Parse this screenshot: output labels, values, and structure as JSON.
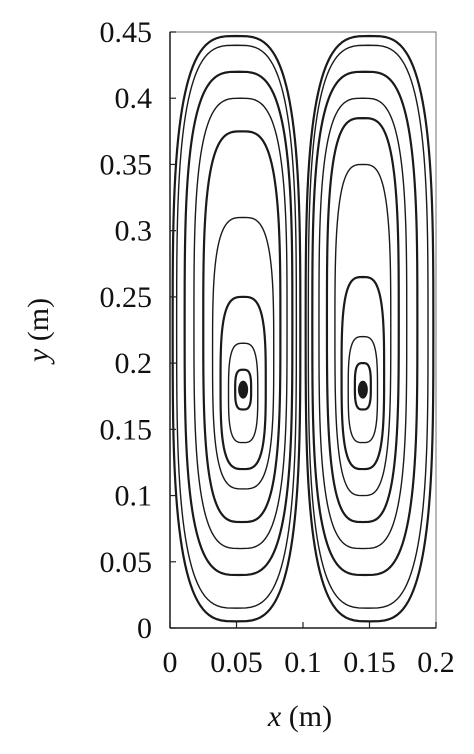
{
  "chart_data": {
    "type": "streamline",
    "title": "",
    "xlabel": {
      "var": "x",
      "unit": " (m)"
    },
    "ylabel": {
      "var": "y",
      "unit": " (m)"
    },
    "xlim": [
      0,
      0.2
    ],
    "ylim": [
      0,
      0.45
    ],
    "grid": false,
    "x_ticks": [
      {
        "value": 0,
        "label": "0"
      },
      {
        "value": 0.05,
        "label": "0.05"
      },
      {
        "value": 0.1,
        "label": "0.1"
      },
      {
        "value": 0.15,
        "label": "0.15"
      },
      {
        "value": 0.2,
        "label": "0.2"
      }
    ],
    "y_ticks": [
      {
        "value": 0,
        "label": "0"
      },
      {
        "value": 0.05,
        "label": "0.05"
      },
      {
        "value": 0.1,
        "label": "0.1"
      },
      {
        "value": 0.15,
        "label": "0.15"
      },
      {
        "value": 0.2,
        "label": "0.2"
      },
      {
        "value": 0.25,
        "label": "0.25"
      },
      {
        "value": 0.3,
        "label": "0.3"
      },
      {
        "value": 0.35,
        "label": "0.35"
      },
      {
        "value": 0.4,
        "label": "0.4"
      },
      {
        "value": 0.45,
        "label": "0.45"
      }
    ],
    "vortices": [
      {
        "center": [
          0.055,
          0.18
        ],
        "loops": [
          {
            "xmin": 0.049,
            "xmax": 0.061,
            "ymin": 0.165,
            "ymax": 0.195
          },
          {
            "xmin": 0.044,
            "xmax": 0.066,
            "ymin": 0.14,
            "ymax": 0.215
          },
          {
            "xmin": 0.038,
            "xmax": 0.072,
            "ymin": 0.12,
            "ymax": 0.25
          },
          {
            "xmin": 0.032,
            "xmax": 0.078,
            "ymin": 0.105,
            "ymax": 0.31
          },
          {
            "xmin": 0.025,
            "xmax": 0.083,
            "ymin": 0.08,
            "ymax": 0.375
          },
          {
            "xmin": 0.018,
            "xmax": 0.088,
            "ymin": 0.06,
            "ymax": 0.4
          },
          {
            "xmin": 0.011,
            "xmax": 0.092,
            "ymin": 0.04,
            "ymax": 0.42
          },
          {
            "xmin": 0.005,
            "xmax": 0.095,
            "ymin": 0.015,
            "ymax": 0.44
          },
          {
            "xmin": 0.002,
            "xmax": 0.098,
            "ymin": 0.005,
            "ymax": 0.447
          }
        ]
      },
      {
        "center": [
          0.145,
          0.18
        ],
        "loops": [
          {
            "xmin": 0.139,
            "xmax": 0.151,
            "ymin": 0.165,
            "ymax": 0.2
          },
          {
            "xmin": 0.134,
            "xmax": 0.156,
            "ymin": 0.14,
            "ymax": 0.22
          },
          {
            "xmin": 0.129,
            "xmax": 0.161,
            "ymin": 0.12,
            "ymax": 0.265
          },
          {
            "xmin": 0.124,
            "xmax": 0.166,
            "ymin": 0.1,
            "ymax": 0.35
          },
          {
            "xmin": 0.118,
            "xmax": 0.172,
            "ymin": 0.08,
            "ymax": 0.385
          },
          {
            "xmin": 0.112,
            "xmax": 0.178,
            "ymin": 0.06,
            "ymax": 0.4
          },
          {
            "xmin": 0.107,
            "xmax": 0.186,
            "ymin": 0.04,
            "ymax": 0.42
          },
          {
            "xmin": 0.104,
            "xmax": 0.194,
            "ymin": 0.015,
            "ymax": 0.44
          },
          {
            "xmin": 0.102,
            "xmax": 0.198,
            "ymin": 0.005,
            "ymax": 0.447
          }
        ]
      }
    ]
  }
}
